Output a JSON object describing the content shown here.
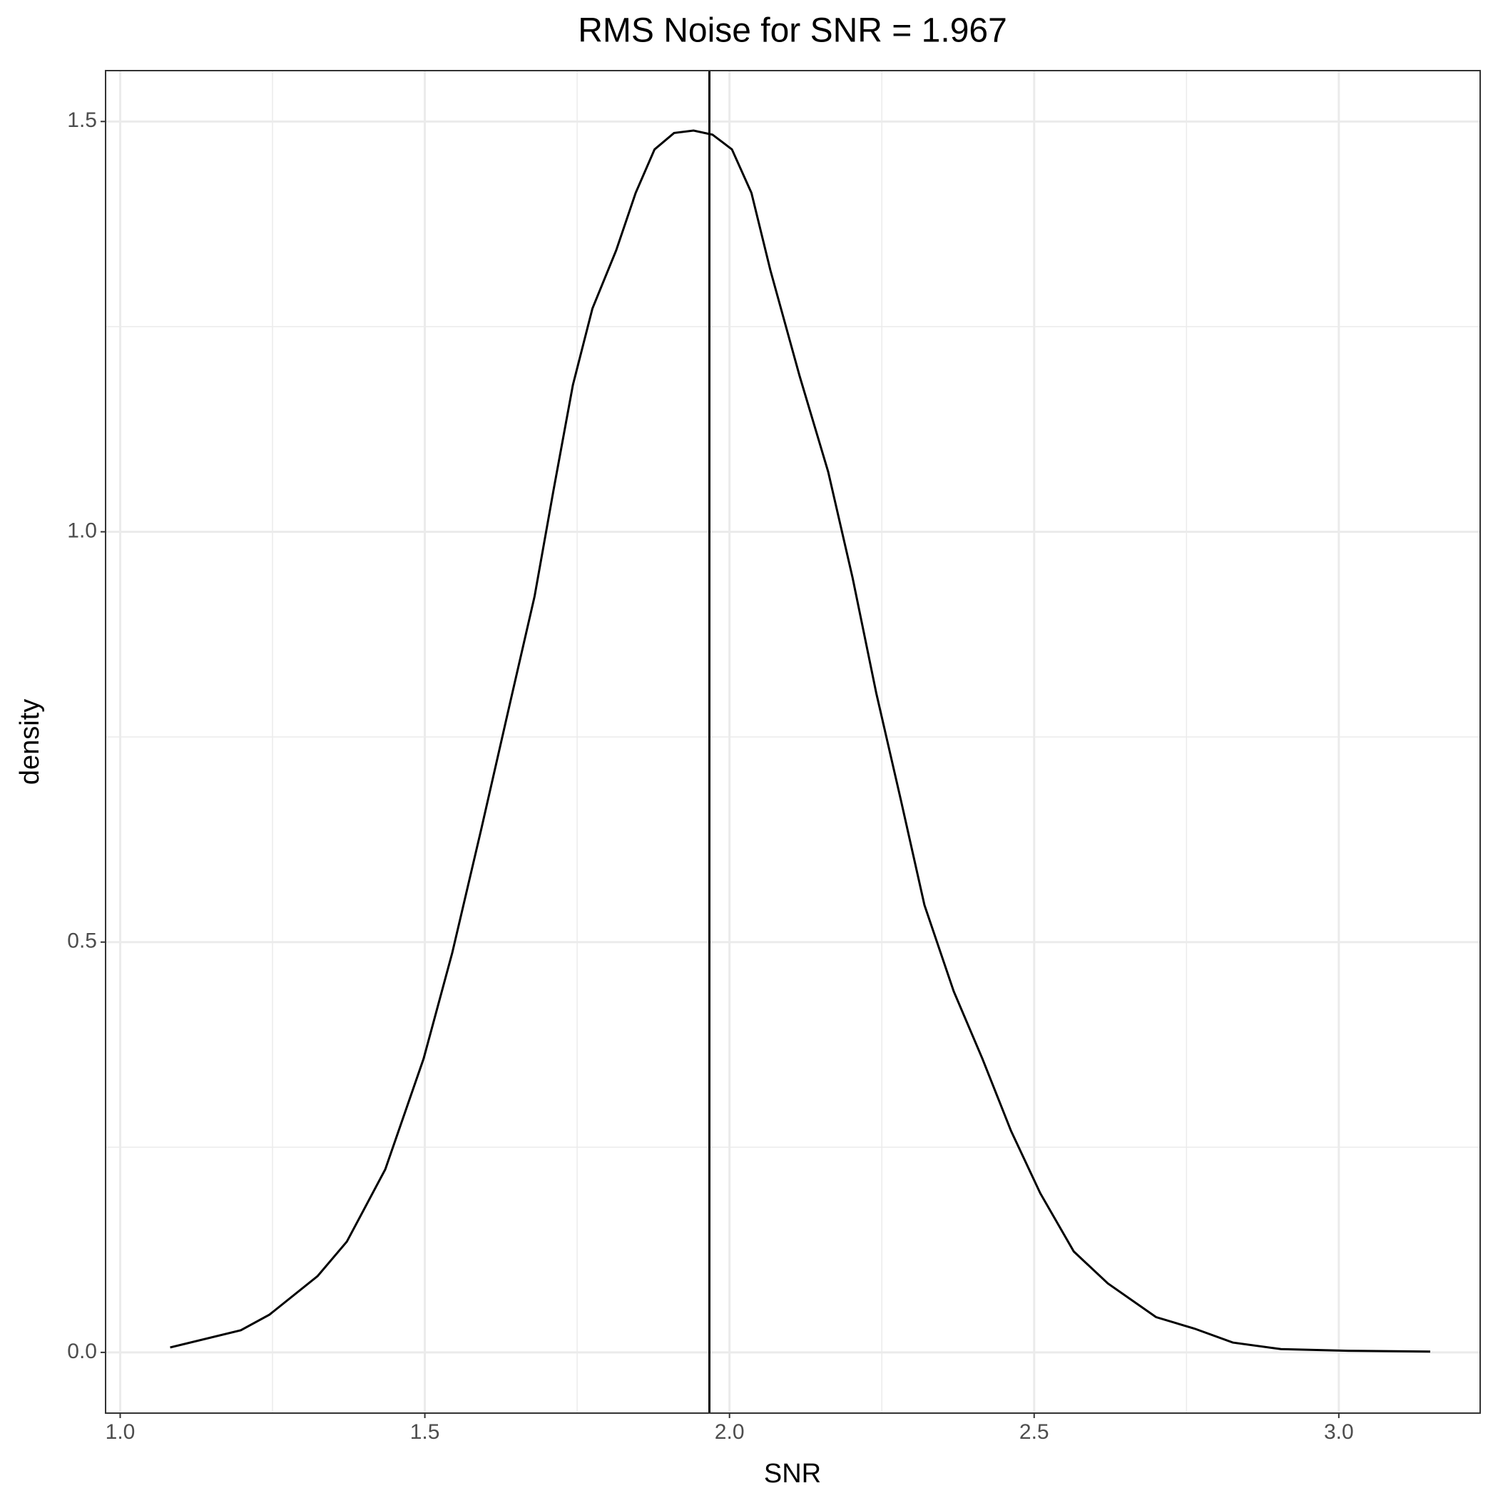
{
  "chart_data": {
    "type": "line",
    "title": "RMS Noise for SNR =  1.967",
    "x_label": "SNR",
    "y_label": "density",
    "x": [
      1.082,
      1.198,
      1.245,
      1.324,
      1.372,
      1.435,
      1.498,
      1.545,
      1.593,
      1.64,
      1.68,
      1.711,
      1.743,
      1.775,
      1.814,
      1.846,
      1.877,
      1.909,
      1.941,
      1.972,
      2.004,
      2.036,
      2.067,
      2.115,
      2.162,
      2.202,
      2.241,
      2.281,
      2.32,
      2.368,
      2.415,
      2.462,
      2.51,
      2.565,
      2.621,
      2.7,
      2.763,
      2.826,
      2.905,
      3.016,
      3.15
    ],
    "series": [
      {
        "color": "#000000",
        "values": [
          0.006,
          0.027,
          0.046,
          0.093,
          0.135,
          0.223,
          0.358,
          0.487,
          0.639,
          0.792,
          0.921,
          1.05,
          1.179,
          1.272,
          1.343,
          1.413,
          1.466,
          1.486,
          1.489,
          1.484,
          1.466,
          1.413,
          1.319,
          1.19,
          1.073,
          0.944,
          0.803,
          0.674,
          0.545,
          0.44,
          0.358,
          0.27,
          0.194,
          0.123,
          0.084,
          0.043,
          0.029,
          0.012,
          0.004,
          0.002,
          0.001
        ]
      }
    ],
    "vline": 1.967,
    "xlim": [
      0.976,
      3.232
    ],
    "ylim": [
      -0.074,
      1.562
    ],
    "xticks": [
      {
        "value": 1.0,
        "label": "1.0"
      },
      {
        "value": 1.5,
        "label": "1.5"
      },
      {
        "value": 2.0,
        "label": "2.0"
      },
      {
        "value": 2.5,
        "label": "2.5"
      },
      {
        "value": 3.0,
        "label": "3.0"
      }
    ],
    "yticks": [
      {
        "value": 0.0,
        "label": "0.0"
      },
      {
        "value": 0.5,
        "label": "0.5"
      },
      {
        "value": 1.0,
        "label": "1.0"
      },
      {
        "value": 1.5,
        "label": "1.5"
      }
    ],
    "grid": true
  }
}
